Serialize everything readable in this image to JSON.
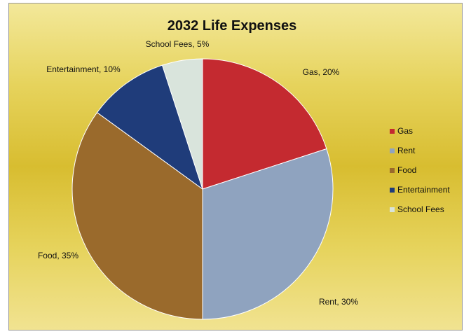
{
  "chart_data": {
    "type": "pie",
    "title": "2032 Life Expenses",
    "categories": [
      "Gas",
      "Rent",
      "Food",
      "Entertainment",
      "School Fees"
    ],
    "values": [
      20,
      30,
      35,
      10,
      5
    ],
    "value_labels": [
      "Gas, 20%",
      "Rent, 30%",
      "Food, 35%",
      "Entertainment, 10%",
      "School Fees, 5%"
    ],
    "colors": [
      "#c42a30",
      "#8fa3bf",
      "#9a6a2c",
      "#1f3c7a",
      "#d9e4dc"
    ],
    "legend": "right"
  }
}
